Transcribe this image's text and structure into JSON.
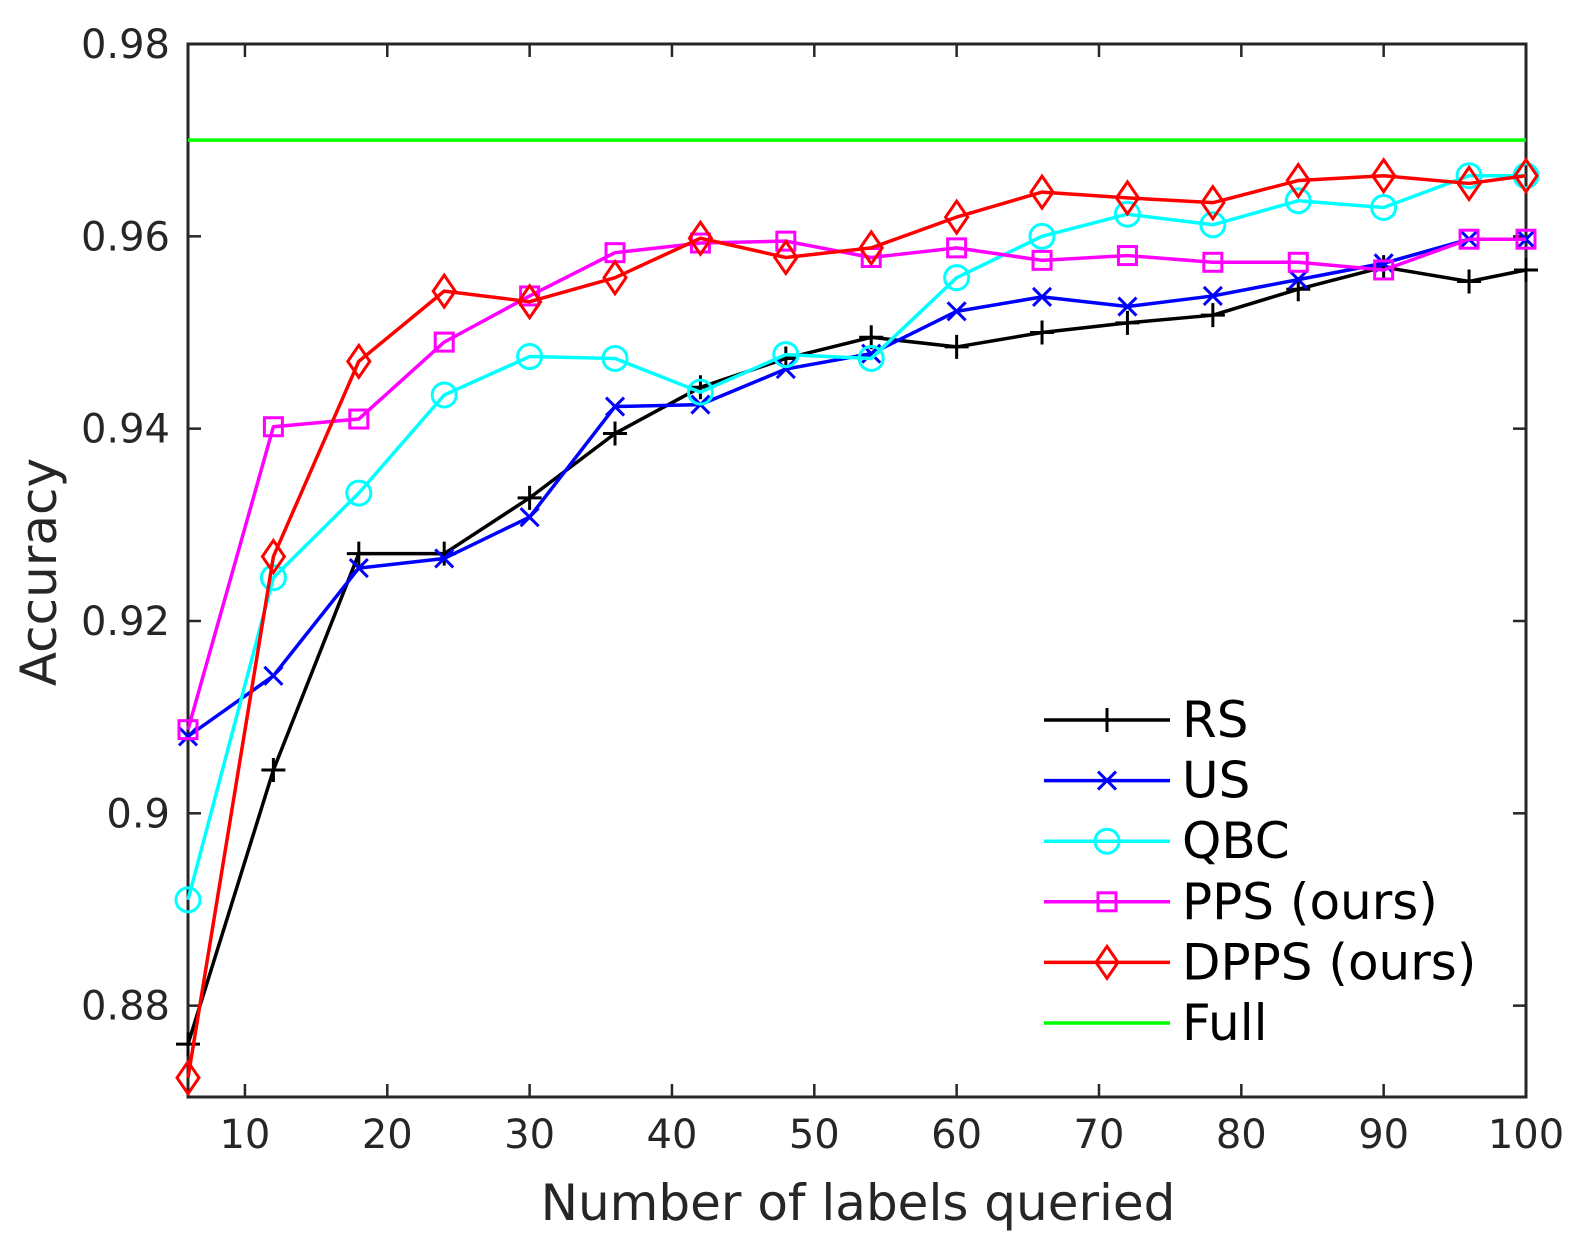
{
  "chart_data": {
    "type": "line",
    "title": "",
    "xlabel": "Number of labels queried",
    "ylabel": "Accuracy",
    "xlim": [
      6,
      100
    ],
    "ylim": [
      0.8705,
      0.98
    ],
    "xticks": [
      10,
      20,
      30,
      40,
      50,
      60,
      70,
      80,
      90,
      100
    ],
    "xtick_labels": [
      "10",
      "20",
      "30",
      "40",
      "50",
      "60",
      "70",
      "80",
      "90",
      "100"
    ],
    "yticks": [
      0.88,
      0.9,
      0.92,
      0.94,
      0.96,
      0.98
    ],
    "ytick_labels": [
      "0.88",
      "0.9",
      "0.92",
      "0.94",
      "0.96",
      "0.98"
    ],
    "grid": false,
    "legend_position": "bottom-right",
    "x": [
      6,
      12,
      18,
      24,
      30,
      36,
      42,
      48,
      54,
      60,
      66,
      72,
      78,
      84,
      90,
      96,
      100
    ],
    "series": [
      {
        "name": "RS",
        "color": "#000000",
        "marker": "plus",
        "values": [
          0.876,
          0.9045,
          0.927,
          0.927,
          0.9328,
          0.9395,
          0.9443,
          0.9473,
          0.9495,
          0.9485,
          0.95,
          0.951,
          0.9518,
          0.9545,
          0.9568,
          0.9553,
          0.9565
        ]
      },
      {
        "name": "US",
        "color": "#0000ff",
        "marker": "x",
        "values": [
          0.908,
          0.9143,
          0.9255,
          0.9265,
          0.9308,
          0.9423,
          0.9425,
          0.9462,
          0.9478,
          0.9522,
          0.9537,
          0.9527,
          0.9538,
          0.9555,
          0.9572,
          0.9597,
          0.9597
        ]
      },
      {
        "name": "QBC",
        "color": "#00ffff",
        "marker": "circle",
        "values": [
          0.891,
          0.9245,
          0.9333,
          0.9435,
          0.9475,
          0.9473,
          0.9438,
          0.9477,
          0.9473,
          0.9557,
          0.96,
          0.9623,
          0.9612,
          0.9637,
          0.963,
          0.9663,
          0.9663
        ]
      },
      {
        "name": "PPS (ours)",
        "color": "#ff00ff",
        "marker": "square",
        "values": [
          0.9087,
          0.9402,
          0.941,
          0.949,
          0.9538,
          0.9583,
          0.9593,
          0.9595,
          0.9578,
          0.9588,
          0.9575,
          0.958,
          0.9573,
          0.9573,
          0.9565,
          0.9597,
          0.9597
        ]
      },
      {
        "name": "DPPS (ours)",
        "color": "#ff0000",
        "marker": "diamond",
        "values": [
          0.8725,
          0.9267,
          0.947,
          0.9543,
          0.9532,
          0.9557,
          0.9598,
          0.9578,
          0.9588,
          0.962,
          0.9646,
          0.964,
          0.9635,
          0.9658,
          0.9663,
          0.9655,
          0.9663
        ]
      },
      {
        "name": "Full",
        "color": "#00ff00",
        "marker": "none",
        "values": [
          0.97,
          0.97,
          0.97,
          0.97,
          0.97,
          0.97,
          0.97,
          0.97,
          0.97,
          0.97,
          0.97,
          0.97,
          0.97,
          0.97,
          0.97,
          0.97,
          0.97
        ]
      }
    ]
  }
}
